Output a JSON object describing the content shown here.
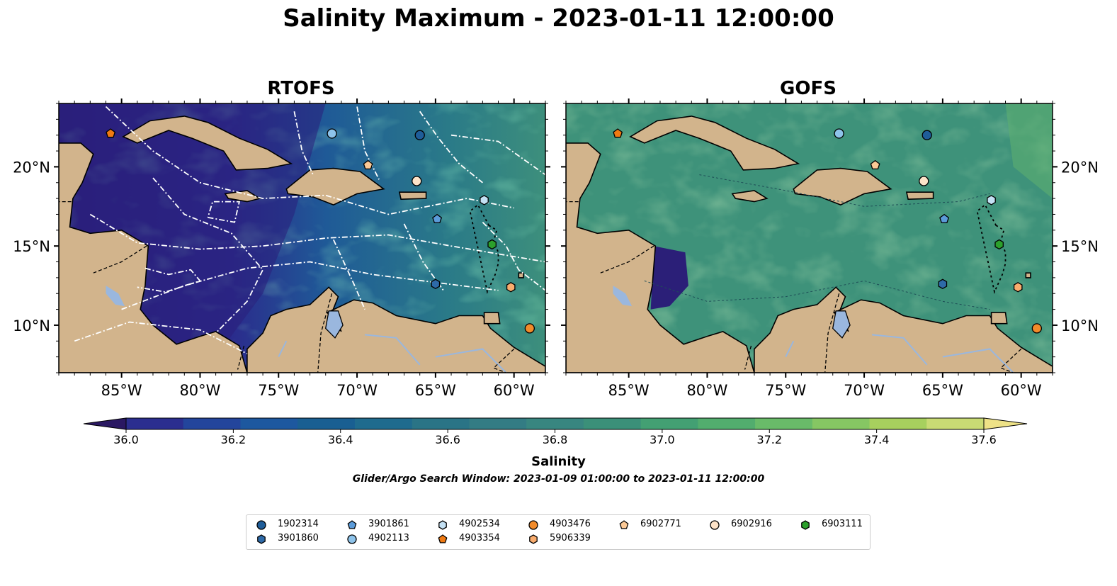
{
  "title": "Salinity Maximum - 2023-01-11 12:00:00",
  "panels": [
    {
      "title": "RTOFS",
      "model": "RTOFS"
    },
    {
      "title": "GOFS",
      "model": "GOFS"
    }
  ],
  "lon_ticks": [
    "85°W",
    "80°W",
    "75°W",
    "70°W",
    "65°W",
    "60°W"
  ],
  "lat_ticks": [
    "20°N",
    "15°N",
    "10°N"
  ],
  "colorbar": {
    "label": "Salinity",
    "ticks": [
      "36.0",
      "36.2",
      "36.4",
      "36.6",
      "36.8",
      "37.0",
      "37.2",
      "37.4",
      "37.6"
    ],
    "range": [
      36.0,
      37.6
    ],
    "step": 0.1,
    "extend": "both",
    "colors": [
      "#2a1862",
      "#2b2e8f",
      "#23459c",
      "#1d589f",
      "#195f92",
      "#1f6b8e",
      "#2a7486",
      "#337c84",
      "#388680",
      "#3b9079",
      "#43a073",
      "#52ad6e",
      "#69bb69",
      "#86c663",
      "#a7d05e",
      "#c9db74",
      "#eee287"
    ]
  },
  "search_window": "Glider/Argo Search Window: 2023-01-09 01:00:00 to 2023-01-11 12:00:00",
  "legend": [
    {
      "id": "1902314",
      "marker": "circle",
      "color": "#1f5d99"
    },
    {
      "id": "3901860",
      "marker": "hexagon",
      "color": "#2e6aa8"
    },
    {
      "id": "3901861",
      "marker": "pentagon",
      "color": "#5b9bd9"
    },
    {
      "id": "4902113",
      "marker": "circle",
      "color": "#8ec3ea"
    },
    {
      "id": "4902534",
      "marker": "hexagon",
      "color": "#c4e1f4"
    },
    {
      "id": "4903354",
      "marker": "pentagon",
      "color": "#f07a12"
    },
    {
      "id": "4903476",
      "marker": "circle",
      "color": "#f28b2a"
    },
    {
      "id": "5906339",
      "marker": "hexagon",
      "color": "#f9ac6d"
    },
    {
      "id": "6902771",
      "marker": "pentagon",
      "color": "#fbc996"
    },
    {
      "id": "6902916",
      "marker": "circle",
      "color": "#fde3c8"
    },
    {
      "id": "6903111",
      "marker": "hexagon",
      "color": "#2ca02c"
    }
  ],
  "chart_data": {
    "type": "heatmap",
    "title": "Salinity Maximum - 2023-01-11 12:00:00",
    "panels": [
      "RTOFS",
      "GOFS"
    ],
    "xlim": [
      -89,
      -58
    ],
    "ylim": [
      7,
      24
    ],
    "colorbar_label": "Salinity",
    "colorbar_range": [
      36.0,
      37.6
    ],
    "floats": [
      {
        "id": "1902314",
        "lon": -66.0,
        "lat": 22.0
      },
      {
        "id": "3901860",
        "lon": -65.0,
        "lat": 12.6
      },
      {
        "id": "3901861",
        "lon": -64.9,
        "lat": 16.7
      },
      {
        "id": "4902113",
        "lon": -71.6,
        "lat": 22.1
      },
      {
        "id": "4902534",
        "lon": -61.9,
        "lat": 17.9
      },
      {
        "id": "4903354",
        "lon": -85.7,
        "lat": 22.1
      },
      {
        "id": "4903476",
        "lon": -59.0,
        "lat": 9.8
      },
      {
        "id": "5906339",
        "lon": -60.2,
        "lat": 12.4
      },
      {
        "id": "6902771",
        "lon": -69.3,
        "lat": 20.1
      },
      {
        "id": "6902916",
        "lon": -66.2,
        "lat": 19.1
      },
      {
        "id": "6903111",
        "lon": -61.4,
        "lat": 15.1
      }
    ],
    "grid": false
  }
}
